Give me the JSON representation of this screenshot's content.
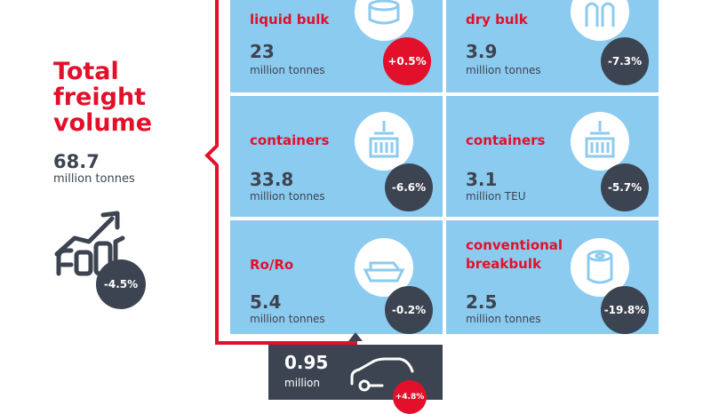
{
  "total": {
    "title_line1": "Total",
    "title_line2": "freight",
    "title_line3": "volume",
    "value": "68.7",
    "unit": "million tonnes",
    "change": "-4.5%"
  },
  "cells": [
    {
      "label": "liquid bulk",
      "value": "23",
      "unit": "million tonnes",
      "change": "+0.5%",
      "change_color": "red",
      "icon": "tank-icon"
    },
    {
      "label": "dry bulk",
      "value": "3.9",
      "unit": "million tonnes",
      "change": "-7.3%",
      "change_color": "dark",
      "icon": "silo-icon"
    },
    {
      "label": "containers",
      "value": "33.8",
      "unit": "million tonnes",
      "change": "-6.6%",
      "change_color": "dark",
      "icon": "container-crane-icon"
    },
    {
      "label": "containers",
      "value": "3.1",
      "unit": "million TEU",
      "change": "-5.7%",
      "change_color": "dark",
      "icon": "container-crane-icon"
    },
    {
      "label": "Ro/Ro",
      "value": "5.4",
      "unit": "million tonnes",
      "change": "-0.2%",
      "change_color": "dark",
      "icon": "ship-icon"
    },
    {
      "label_line1": "conventional",
      "label_line2": "breakbulk",
      "value": "2.5",
      "unit": "million tonnes",
      "change": "-19.8%",
      "change_color": "dark",
      "icon": "paper-roll-icon"
    }
  ],
  "cars": {
    "value": "0.95",
    "unit": "million",
    "change": "+4.8%",
    "icon": "car-icon"
  },
  "colors": {
    "accent_red": "#e2102a",
    "dark": "#3d4451",
    "cell_blue": "#8ccbf0"
  }
}
